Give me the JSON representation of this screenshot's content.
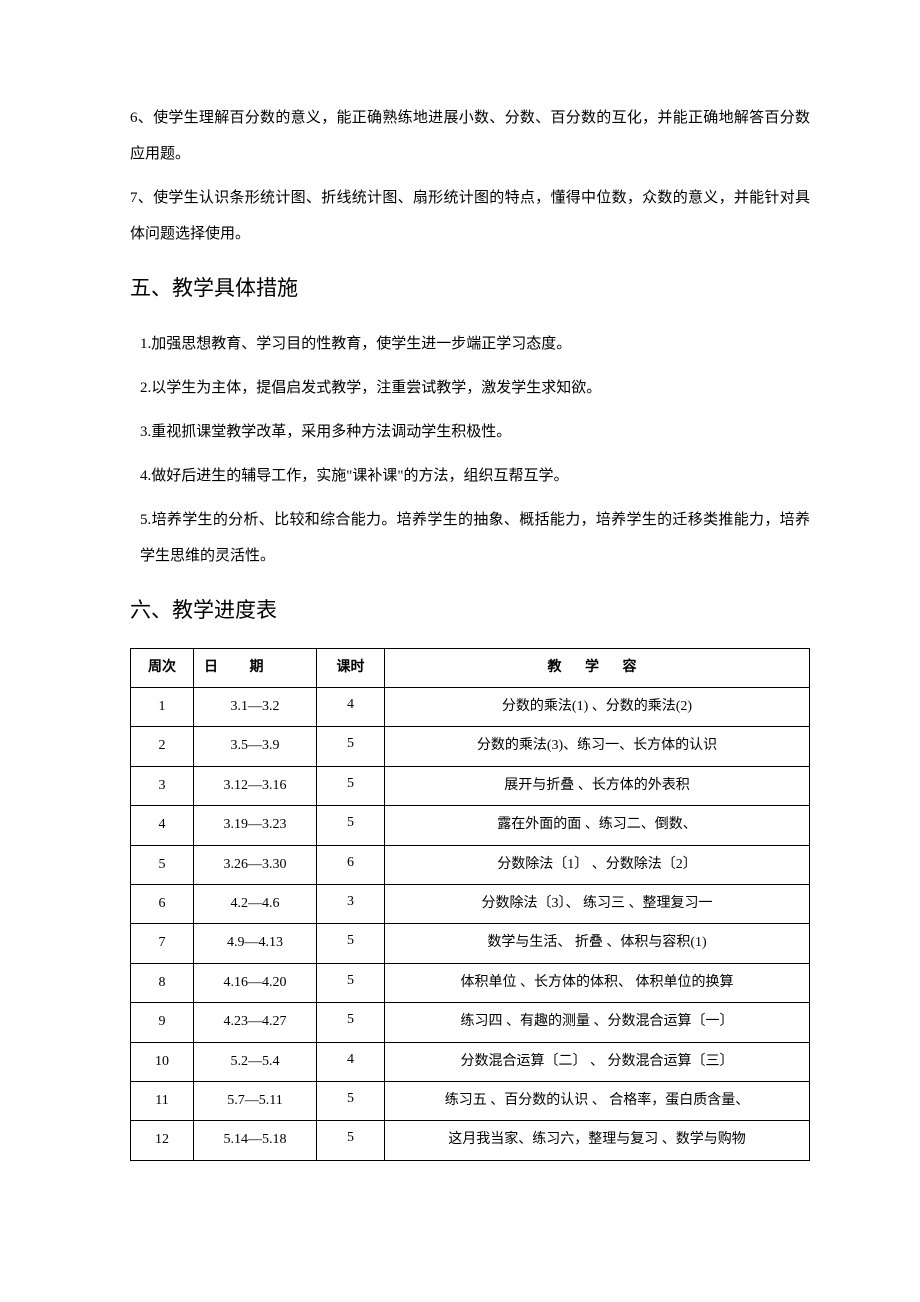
{
  "paragraphs": {
    "p1": "6、使学生理解百分数的意义，能正确熟练地进展小数、分数、百分数的互化，并能正确地解答百分数应用题。",
    "p2": "7、使学生认识条形统计图、折线统计图、扇形统计图的特点，懂得中位数，众数的意义，并能针对具体问题选择使用。"
  },
  "section5": {
    "heading": "五、教学具体措施",
    "items": {
      "i1": "1.加强思想教育、学习目的性教育，使学生进一步端正学习态度。",
      "i2": "2.以学生为主体，提倡启发式教学，注重尝试教学，激发学生求知欲。",
      "i3": "3.重视抓课堂教学改革，采用多种方法调动学生积极性。",
      "i4": "4.做好后进生的辅导工作，实施\"课补课\"的方法，组织互帮互学。",
      "i5": "5.培养学生的分析、比较和综合能力。培养学生的抽象、概括能力，培养学生的迁移类推能力，培养学生思维的灵活性。"
    }
  },
  "section6": {
    "heading": "六、教学进度表"
  },
  "table": {
    "headers": {
      "week": "周次",
      "date": "日 期",
      "hours": "课时",
      "content": "教 学  容"
    },
    "rows": [
      {
        "week": "1",
        "date": "3.1—3.2",
        "hours": "4",
        "content": "分数的乘法(1) 、分数的乘法(2)"
      },
      {
        "week": "2",
        "date": "3.5—3.9",
        "hours": "5",
        "content": "分数的乘法(3)、练习一、长方体的认识"
      },
      {
        "week": "3",
        "date": "3.12—3.16",
        "hours": "5",
        "content": "展开与折叠  、长方体的外表积"
      },
      {
        "week": "4",
        "date": "3.19—3.23",
        "hours": "5",
        "content": "露在外面的面 、练习二、倒数、"
      },
      {
        "week": "5",
        "date": "3.26—3.30",
        "hours": "6",
        "content": "分数除法〔1〕 、分数除法〔2〕"
      },
      {
        "week": "6",
        "date": "4.2—4.6",
        "hours": "3",
        "content": "分数除法〔3〕、 练习三 、整理复习一"
      },
      {
        "week": "7",
        "date": "4.9—4.13",
        "hours": "5",
        "content": "数学与生活、 折叠  、体积与容积(1)"
      },
      {
        "week": "8",
        "date": "4.16—4.20",
        "hours": "5",
        "content": "体积单位  、长方体的体积、   体积单位的换算"
      },
      {
        "week": "9",
        "date": "4.23—4.27",
        "hours": "5",
        "content": "练习四  、有趣的测量  、分数混合运算〔一〕"
      },
      {
        "week": "10",
        "date": "5.2—5.4",
        "hours": "4",
        "content": "分数混合运算〔二〕  、  分数混合运算〔三〕"
      },
      {
        "week": "11",
        "date": "5.7—5.11",
        "hours": "5",
        "content": "练习五  、百分数的认识 、   合格率，蛋白质含量、"
      },
      {
        "week": "12",
        "date": "5.14—5.18",
        "hours": "5",
        "content": "这月我当家、练习六，整理与复习 、数学与购物"
      }
    ]
  }
}
